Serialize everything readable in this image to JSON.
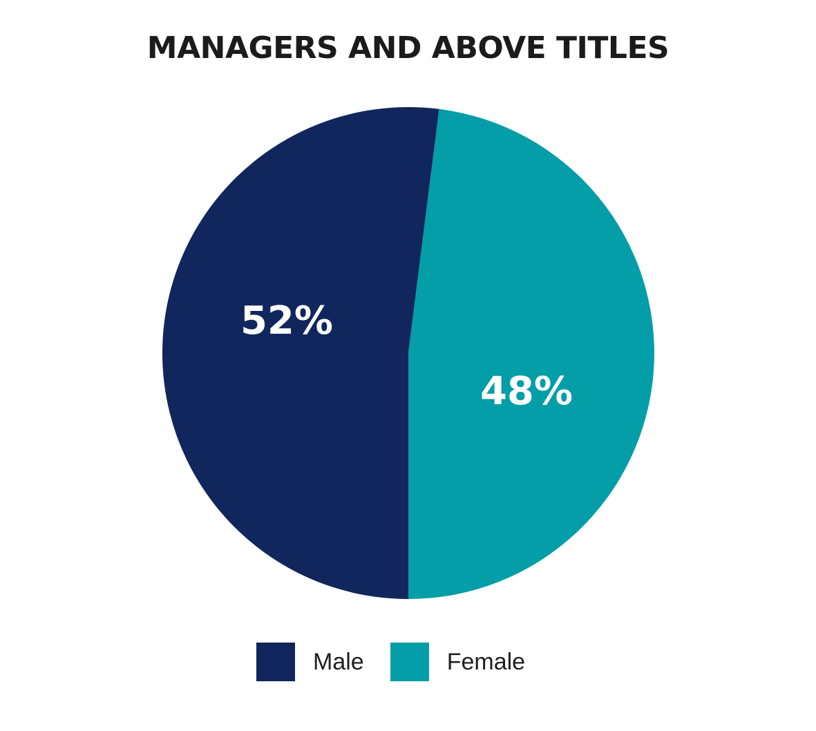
{
  "chart_data": {
    "type": "pie",
    "title": "MANAGERS AND ABOVE TITLES",
    "slices": [
      {
        "label": "Male",
        "value": 52,
        "display": "52%",
        "color": "#10265c"
      },
      {
        "label": "Female",
        "value": 48,
        "display": "48%",
        "color": "#039ea8"
      }
    ],
    "legend": {
      "placement": "bottom",
      "items": [
        {
          "label": "Male",
          "color": "#10265c"
        },
        {
          "label": "Female",
          "color": "#039ea8"
        }
      ]
    }
  }
}
